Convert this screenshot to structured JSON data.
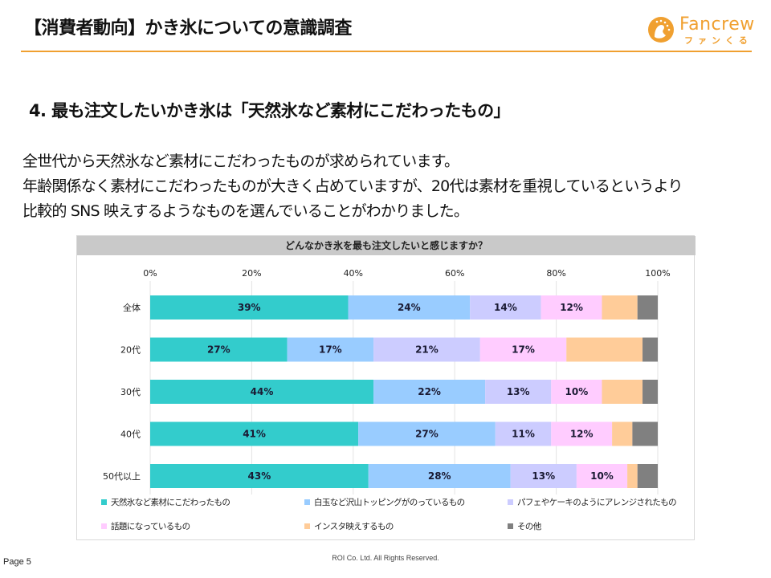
{
  "header": {
    "title": "【消費者動向】かき氷についての意識調査",
    "accent_color": "#f0a030"
  },
  "logo": {
    "name": "Fancrew",
    "sub": "ファンくる",
    "icon": "fancrew-logo-icon"
  },
  "section": {
    "title": "4. 最も注文したいかき氷は「天然氷など素材にこだわったもの」"
  },
  "body": {
    "lines": [
      "全世代から天然氷など素材にこだわったものが求められています。",
      "年齢関係なく素材にこだわったものが大きく占めていますが、20代は素材を重視しているというより",
      "比較的 SNS 映えするようなものを選んでいることがわかりました。"
    ]
  },
  "footer": {
    "page": "Page 5",
    "copyright": "ROI Co. Ltd. All Rights Reserved."
  },
  "chart_data": {
    "type": "bar",
    "orientation": "horizontal",
    "stacked": true,
    "percent_stacked": true,
    "title": "どんなかき氷を最も注文したいと感じますか？",
    "xlabel": "",
    "ylabel": "",
    "xlim": [
      0,
      100
    ],
    "x_ticks": [
      "0%",
      "20%",
      "40%",
      "60%",
      "80%",
      "100%"
    ],
    "x_tick_values": [
      0,
      20,
      40,
      60,
      80,
      100
    ],
    "grid": true,
    "legend_position": "bottom",
    "categories": [
      "全体",
      "20代",
      "30代",
      "40代",
      "50代以上"
    ],
    "series": [
      {
        "name": "天然氷など素材にこだわったもの",
        "color": "#33cccc",
        "values": [
          39,
          27,
          44,
          41,
          43
        ],
        "labels": [
          "39%",
          "27%",
          "44%",
          "41%",
          "43%"
        ]
      },
      {
        "name": "白玉など沢山トッピングがのっているもの",
        "color": "#99ccff",
        "values": [
          24,
          17,
          22,
          27,
          28
        ],
        "labels": [
          "24%",
          "17%",
          "22%",
          "27%",
          "28%"
        ]
      },
      {
        "name": "パフェやケーキのようにアレンジされたもの",
        "color": "#ccccff",
        "values": [
          14,
          21,
          13,
          11,
          13
        ],
        "labels": [
          "14%",
          "21%",
          "13%",
          "11%",
          "13%"
        ]
      },
      {
        "name": "話題になっているもの",
        "color": "#ffccff",
        "values": [
          12,
          17,
          10,
          12,
          10
        ],
        "labels": [
          "12%",
          "17%",
          "10%",
          "12%",
          "10%"
        ]
      },
      {
        "name": "インスタ映えするもの",
        "color": "#ffcc99",
        "values": [
          7,
          15,
          8,
          4,
          2
        ],
        "labels": [
          "",
          "",
          "",
          "",
          ""
        ]
      },
      {
        "name": "その他",
        "color": "#808080",
        "values": [
          4,
          3,
          3,
          5,
          4
        ],
        "labels": [
          "",
          "",
          "",
          "",
          ""
        ]
      }
    ]
  }
}
